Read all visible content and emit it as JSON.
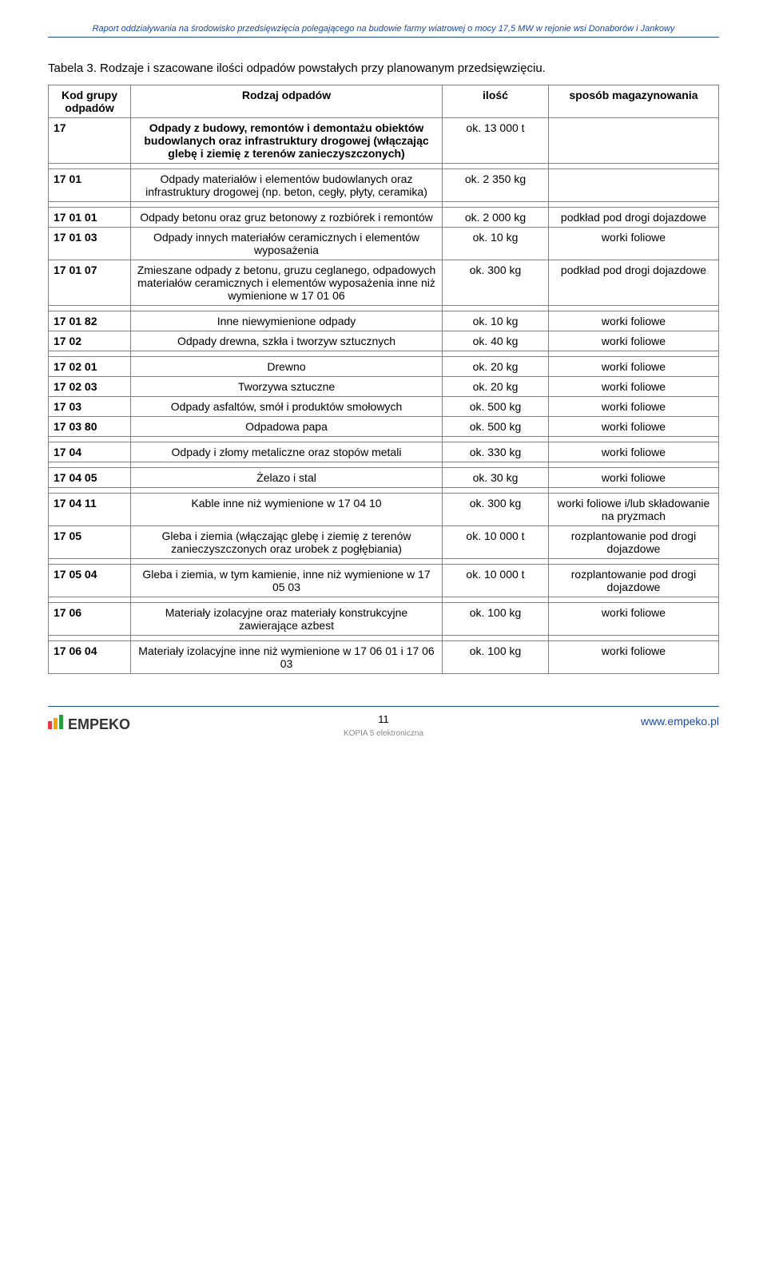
{
  "header": "Raport oddziaływania na środowisko przedsięwzięcia polegającego na budowie farmy wiatrowej o mocy 17,5 MW w rejonie wsi Donaborów i Jankowy",
  "table_title": "Tabela 3. Rodzaje i szacowane ilości odpadów powstałych przy planowanym przedsięwzięciu.",
  "columns": {
    "c1": "Kod grupy odpadów",
    "c2": "Rodzaj odpadów",
    "c3": "ilość",
    "c4": "sposób magazynowania"
  },
  "rows": [
    {
      "c1": "17",
      "c2": "Odpady z budowy, remontów i demontażu obiektów budowlanych oraz\ninfrastruktury drogowej (włączając glebę i ziemię z terenów zanieczyszczonych)",
      "c3": "ok. 13 000 t",
      "c4": "",
      "bold": true,
      "spacer_after": true
    },
    {
      "c1": "17 01",
      "c2": "Odpady materiałów i elementów budowlanych oraz infrastruktury drogowej (np. beton, cegły, płyty, ceramika)",
      "c3": "ok. 2 350 kg",
      "c4": "",
      "spacer_after": true
    },
    {
      "c1": "17 01 01",
      "c2": "Odpady betonu oraz gruz betonowy z rozbiórek i remontów",
      "c3": "ok. 2 000 kg",
      "c4": "podkład pod drogi dojazdowe"
    },
    {
      "c1": "17 01 03",
      "c2": "Odpady innych materiałów ceramicznych i elementów wyposażenia",
      "c3": "ok. 10 kg",
      "c4": "worki foliowe"
    },
    {
      "c1": "17 01 07",
      "c2": "Zmieszane odpady z betonu, gruzu ceglanego, odpadowych materiałów ceramicznych i elementów wyposażenia inne niż wymienione w 17 01 06",
      "c3": "ok. 300 kg",
      "c4": "podkład pod drogi dojazdowe",
      "spacer_after": true
    },
    {
      "c1": "17 01 82",
      "c2": "Inne niewymienione odpady",
      "c3": "ok. 10 kg",
      "c4": "worki foliowe"
    },
    {
      "c1": "17 02",
      "c2": "Odpady drewna, szkła i tworzyw sztucznych",
      "c3": "ok. 40 kg",
      "c4": "worki foliowe",
      "spacer_after": true
    },
    {
      "c1": "17 02 01",
      "c2": "Drewno",
      "c3": "ok. 20 kg",
      "c4": "worki foliowe"
    },
    {
      "c1": "17 02 03",
      "c2": "Tworzywa sztuczne",
      "c3": "ok. 20 kg",
      "c4": "worki foliowe"
    },
    {
      "c1": "17 03",
      "c2": "Odpady asfaltów, smół i produktów smołowych",
      "c3": "ok. 500 kg",
      "c4": "worki foliowe"
    },
    {
      "c1": "17 03 80",
      "c2": "Odpadowa papa",
      "c3": "ok. 500 kg",
      "c4": "worki foliowe",
      "spacer_after": true
    },
    {
      "c1": "17 04",
      "c2": "Odpady i złomy metaliczne oraz stopów metali",
      "c3": "ok. 330 kg",
      "c4": "worki foliowe",
      "spacer_after": true
    },
    {
      "c1": "17 04 05",
      "c2": "Żelazo i stal",
      "c3": "ok. 30 kg",
      "c4": "worki foliowe",
      "spacer_after": true
    },
    {
      "c1": "17 04 11",
      "c2": "Kable inne niż wymienione w 17 04 10",
      "c3": "ok. 300 kg",
      "c4": "worki foliowe i/lub składowanie na pryzmach"
    },
    {
      "c1": "17 05",
      "c2": "Gleba i ziemia (włączając glebę i ziemię z terenów zanieczyszczonych oraz urobek z pogłębiania)",
      "c3": "ok. 10 000 t",
      "c4": "rozplantowanie pod drogi dojazdowe",
      "spacer_after": true
    },
    {
      "c1": "17 05 04",
      "c2": "Gleba i ziemia, w tym kamienie, inne niż wymienione w 17 05 03",
      "c3": "ok. 10 000 t",
      "c4": "rozplantowanie pod drogi dojazdowe",
      "spacer_after": true
    },
    {
      "c1": "17 06",
      "c2": "Materiały izolacyjne oraz materiały konstrukcyjne zawierające azbest",
      "c3": "ok. 100 kg",
      "c4": "worki foliowe",
      "spacer_after": true
    },
    {
      "c1": "17 06 04",
      "c2": "Materiały izolacyjne inne niż wymienione w 17 06 01 i 17 06 03",
      "c3": "ok. 100 kg",
      "c4": "worki foliowe"
    }
  ],
  "footer": {
    "logo_text": "EMPEKO",
    "page_number": "11",
    "kopia": "KOPIA 5 elektroniczna",
    "website": "www.empeko.pl"
  }
}
